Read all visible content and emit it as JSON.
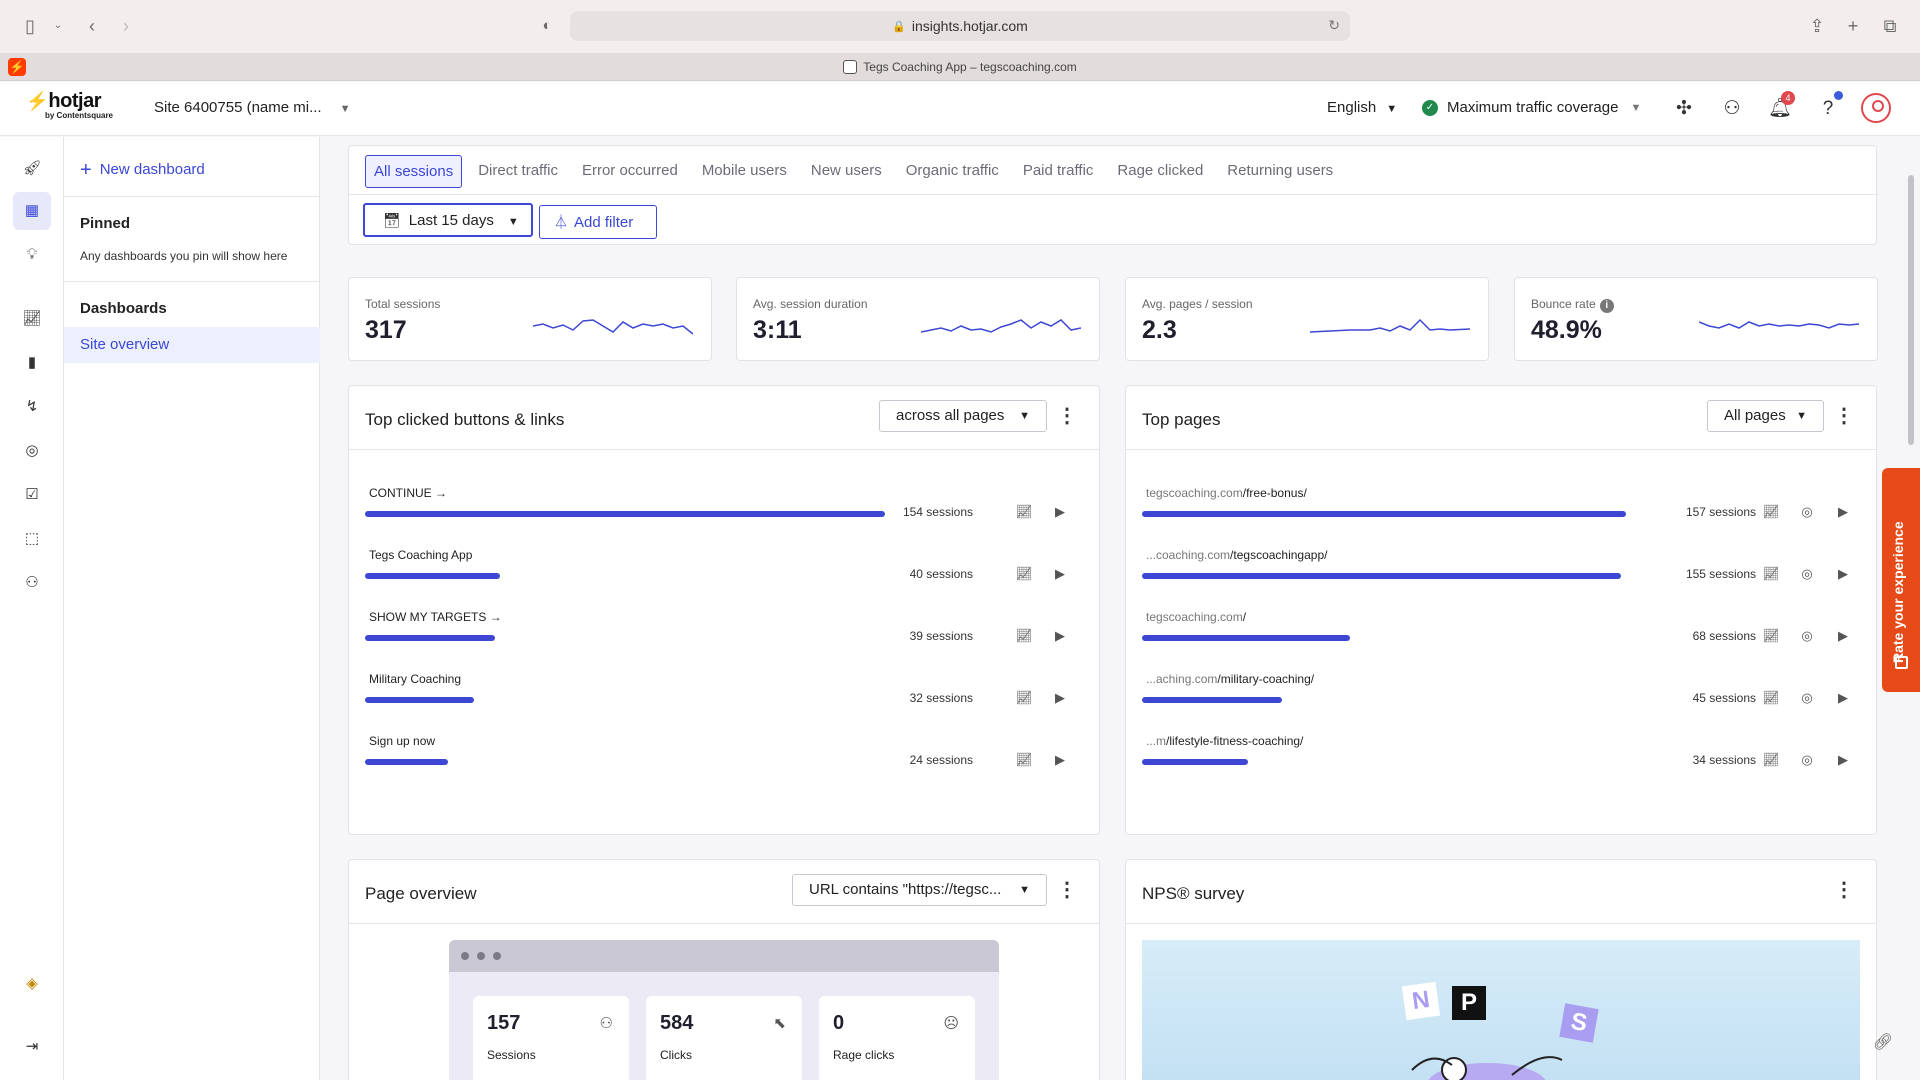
{
  "browser": {
    "url": "insights.hotjar.com",
    "tab_title": "Tegs Coaching App – tegscoaching.com"
  },
  "header": {
    "logo_text": "hotjar",
    "logo_sub": "by Contentsquare",
    "site": "Site 6400755 (name mi...",
    "language": "English",
    "coverage": "Maximum traffic coverage",
    "notification_count": "4"
  },
  "sidebar": {
    "new_dashboard": "New dashboard",
    "pinned_title": "Pinned",
    "pinned_hint": "Any dashboards you pin will show here",
    "dashboards_title": "Dashboards",
    "active_item": "Site overview"
  },
  "segments": {
    "tabs": [
      "All sessions",
      "Direct traffic",
      "Error occurred",
      "Mobile users",
      "New users",
      "Organic traffic",
      "Paid traffic",
      "Rage clicked",
      "Returning users"
    ],
    "active": "All sessions",
    "date_range": "Last 15 days",
    "add_filter": "Add filter"
  },
  "metrics": [
    {
      "label": "Total sessions",
      "value": "317"
    },
    {
      "label": "Avg. session duration",
      "value": "3:11"
    },
    {
      "label": "Avg. pages / session",
      "value": "2.3"
    },
    {
      "label": "Bounce rate",
      "value": "48.9%"
    }
  ],
  "top_clicked": {
    "title": "Top clicked buttons & links",
    "filter": "across all pages",
    "rows": [
      {
        "label": "CONTINUE →",
        "count": "154 sessions",
        "fraction": 1.0
      },
      {
        "label": "Tegs Coaching App",
        "count": "40 sessions",
        "fraction": 0.26
      },
      {
        "label": "SHOW MY TARGETS →",
        "count": "39 sessions",
        "fraction": 0.25
      },
      {
        "label": "Military Coaching",
        "count": "32 sessions",
        "fraction": 0.21
      },
      {
        "label": "Sign up now",
        "count": "24 sessions",
        "fraction": 0.16
      }
    ]
  },
  "top_pages": {
    "title": "Top pages",
    "filter": "All pages",
    "rows": [
      {
        "prefix": "tegscoaching.com",
        "path": "/free-bonus/",
        "count": "157 sessions",
        "fraction": 1.0
      },
      {
        "prefix": "...coaching.com",
        "path": "/tegscoachingapp/",
        "count": "155 sessions",
        "fraction": 0.99
      },
      {
        "prefix": "tegscoaching.com",
        "path": "/",
        "count": "68 sessions",
        "fraction": 0.43
      },
      {
        "prefix": "...aching.com",
        "path": "/military-coaching/",
        "count": "45 sessions",
        "fraction": 0.29
      },
      {
        "prefix": "...m",
        "path": "/lifestyle-fitness-coaching/",
        "count": "34 sessions",
        "fraction": 0.22
      }
    ]
  },
  "page_overview": {
    "title": "Page overview",
    "filter": "URL contains \"https://tegsc...",
    "stats": [
      {
        "value": "157",
        "label": "Sessions"
      },
      {
        "value": "584",
        "label": "Clicks"
      },
      {
        "value": "0",
        "label": "Rage clicks"
      }
    ]
  },
  "nps": {
    "title": "NPS® survey",
    "letters": [
      "N",
      "P",
      "S"
    ]
  },
  "feedback_tab": "Rate your experience",
  "colors": {
    "accent": "#3b47d6",
    "bar": "#3d47d3",
    "brand": "#ff3c00",
    "feedback": "#e64a19"
  }
}
